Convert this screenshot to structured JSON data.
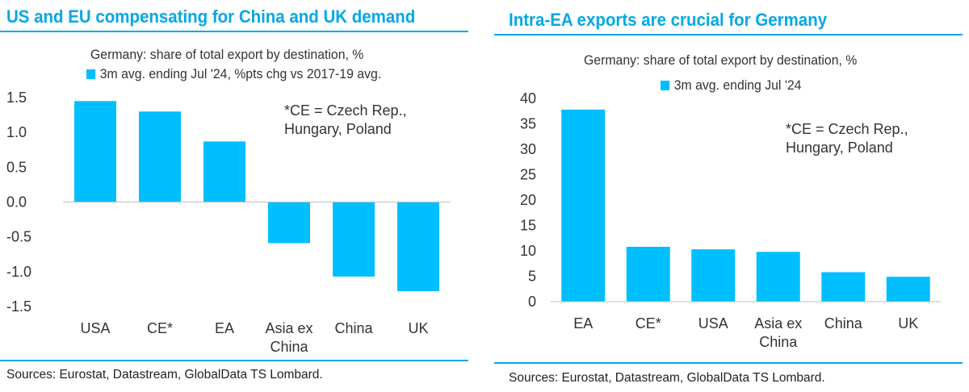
{
  "chart_data": [
    {
      "type": "bar",
      "title": "US and EU compensating for China and UK demand",
      "subtitle": "Germany: share of total export by destination, %",
      "legend": "3m avg. ending Jul '24, %pts chg vs 2017-19 avg.",
      "note": [
        "*CE = Czech Rep.,",
        "Hungary, Poland"
      ],
      "categories": [
        [
          "USA"
        ],
        [
          "CE*"
        ],
        [
          "EA"
        ],
        [
          "Asia ex",
          "China"
        ],
        [
          "China"
        ],
        [
          "UK"
        ]
      ],
      "series": [
        {
          "name": "3m avg. ending Jul '24, %pts chg vs 2017-19 avg.",
          "values": [
            1.45,
            1.3,
            0.87,
            -0.59,
            -1.07,
            -1.28
          ]
        }
      ],
      "ylim": [
        -1.5,
        1.5
      ],
      "yticks": [
        1.5,
        1.0,
        0.5,
        0.0,
        -0.5,
        -1.0,
        -1.5
      ],
      "ytick_labels": [
        "1.5",
        "1.0",
        "0.5",
        "0.0",
        "-0.5",
        "-1.0",
        "-1.5"
      ],
      "grid": false,
      "legend_position": "top",
      "source": "Sources: Eurostat, Datastream, GlobalData TS Lombard."
    },
    {
      "type": "bar",
      "title": "Intra-EA exports are crucial for Germany",
      "subtitle": "Germany: share of total export by destination, %",
      "legend": "3m avg. ending Jul '24",
      "note": [
        "*CE = Czech Rep.,",
        "Hungary, Poland"
      ],
      "categories": [
        [
          "EA"
        ],
        [
          "CE*"
        ],
        [
          "USA"
        ],
        [
          "Asia ex",
          "China"
        ],
        [
          "China"
        ],
        [
          "UK"
        ]
      ],
      "series": [
        {
          "name": "3m avg. ending Jul '24",
          "values": [
            37.8,
            10.8,
            10.3,
            9.8,
            5.8,
            4.9
          ]
        }
      ],
      "ylim": [
        0,
        40
      ],
      "yticks": [
        40,
        35,
        30,
        25,
        20,
        15,
        10,
        5,
        0
      ],
      "ytick_labels": [
        "40",
        "35",
        "30",
        "25",
        "20",
        "15",
        "10",
        "5",
        "0"
      ],
      "grid": false,
      "legend_position": "top",
      "source": "Sources: Eurostat, Datastream, GlobalData TS Lombard."
    }
  ],
  "colors": {
    "accent": "#00a8e6",
    "bar": "#00bfff",
    "axis": "#bfbfbf"
  }
}
